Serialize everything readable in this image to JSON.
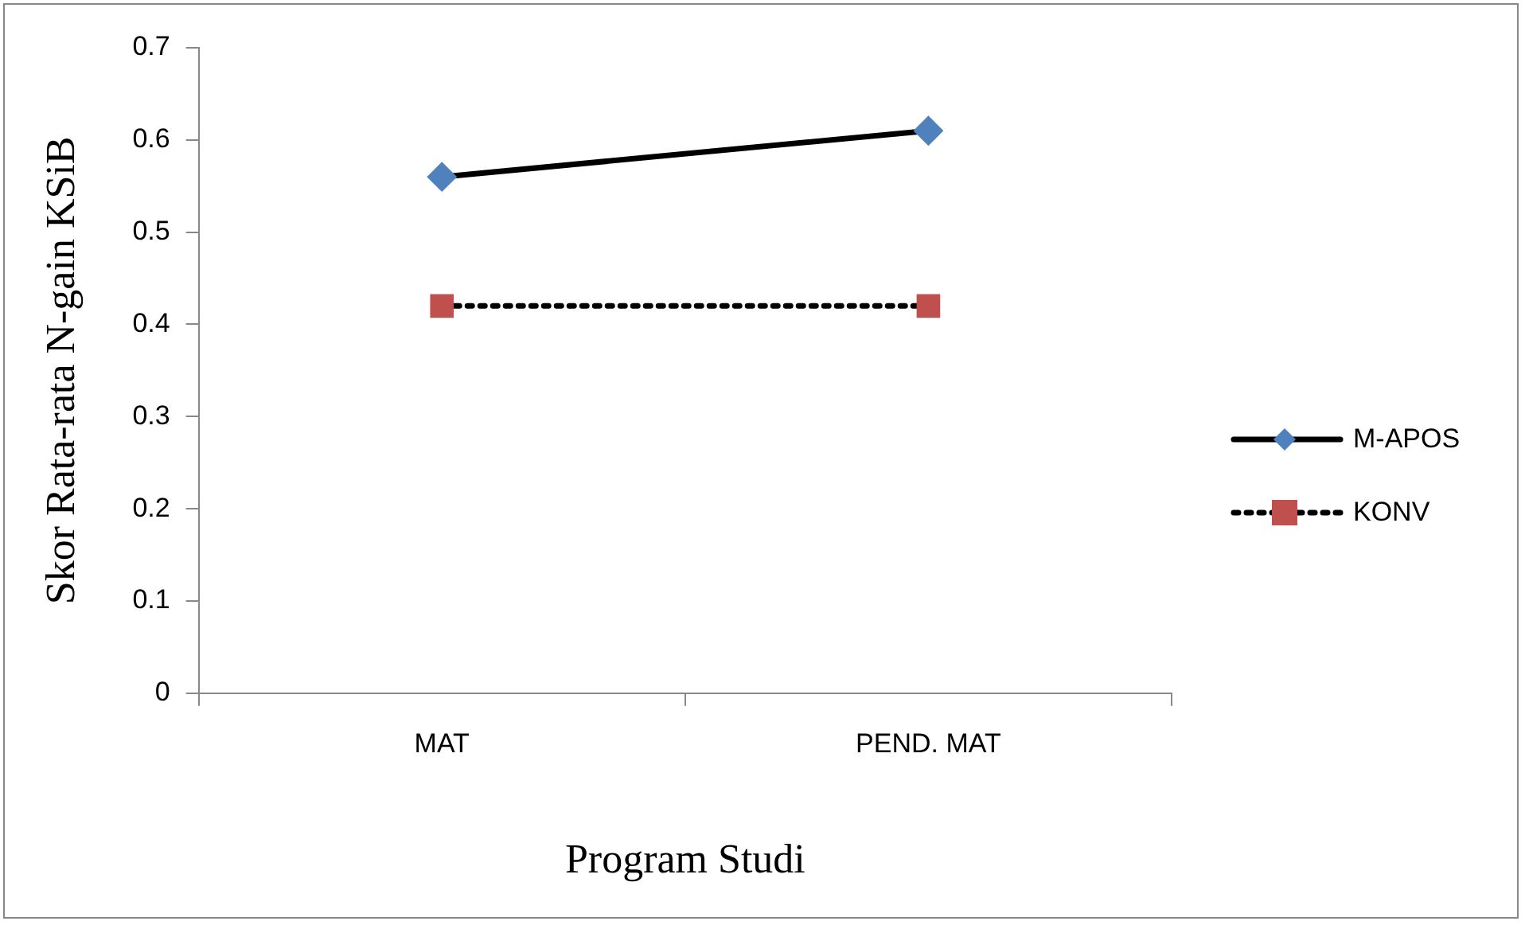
{
  "chart_data": {
    "type": "line",
    "xlabel": "Program Studi",
    "ylabel": "Skor Rata-rata N-gain KSiB",
    "categories": [
      "MAT",
      "PEND. MAT"
    ],
    "series": [
      {
        "name": "M-APOS",
        "color": "#4f81bd",
        "values": [
          0.56,
          0.61
        ],
        "marker": "diamond",
        "line_style": "solid"
      },
      {
        "name": "KONV",
        "color": "#c0504d",
        "values": [
          0.42,
          0.42
        ],
        "marker": "square",
        "line_style": "dotted"
      }
    ],
    "ylim": [
      0,
      0.7
    ],
    "yticks": [
      0,
      0.1,
      0.2,
      0.3,
      0.4,
      0.5,
      0.6,
      0.7
    ],
    "grid": false,
    "legend": "right"
  }
}
